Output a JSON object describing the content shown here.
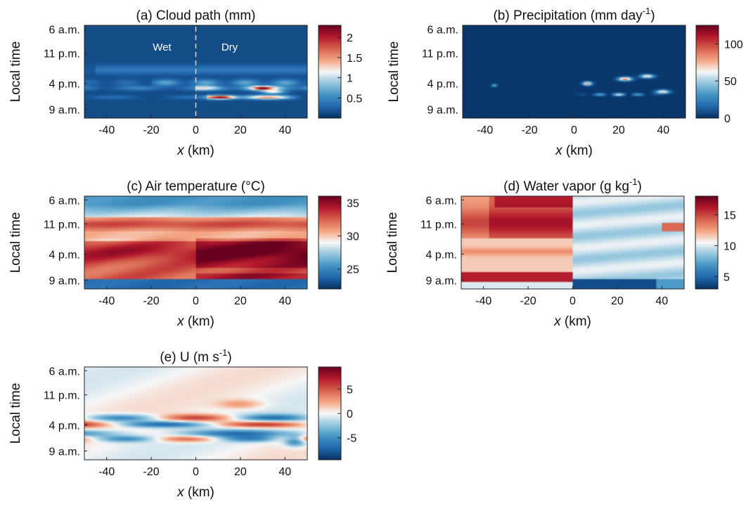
{
  "colors": {
    "colormap": [
      "#053061",
      "#2166ac",
      "#4393c3",
      "#92c5de",
      "#f7f7f7",
      "#f4a582",
      "#d6604d",
      "#b2182b",
      "#67001f"
    ]
  },
  "chart_data": [
    {
      "type": "heatmap",
      "id": "a",
      "title": "(a) Cloud path (mm)",
      "xlabel": "x (km)",
      "ylabel": "Local time",
      "xlim": [
        -50,
        50
      ],
      "x_ticks": [
        -40,
        -20,
        0,
        20,
        40
      ],
      "y_ticks": [
        "6 a.m.",
        "11 p.m.",
        "4 p.m.",
        "9 a.m."
      ],
      "clim": [
        0,
        2.3
      ],
      "colorbar_ticks": [
        0.5,
        1,
        1.5,
        2
      ],
      "colorbar_tick_labels": [
        "0.5",
        "1",
        "1.5",
        "2"
      ],
      "annotations": [
        "Wet",
        "Dry"
      ],
      "divider_x": 0
    },
    {
      "type": "heatmap",
      "id": "b",
      "title": "(b) Precipitation (mm day",
      "title_sup": "-1",
      "title_end": ")",
      "xlabel": "x (km)",
      "ylabel": "Local time",
      "xlim": [
        -50,
        50
      ],
      "x_ticks": [
        -40,
        -20,
        0,
        20,
        40
      ],
      "y_ticks": [
        "6 a.m.",
        "11 p.m.",
        "4 p.m.",
        "9 a.m."
      ],
      "clim": [
        0,
        125
      ],
      "colorbar_ticks": [
        0,
        50,
        100
      ],
      "colorbar_tick_labels": [
        "0",
        "50",
        "100"
      ]
    },
    {
      "type": "heatmap",
      "id": "c",
      "title": "(c) Air temperature (°C)",
      "xlabel": "x (km)",
      "ylabel": "Local time",
      "xlim": [
        -50,
        50
      ],
      "x_ticks": [
        -40,
        -20,
        0,
        20,
        40
      ],
      "y_ticks": [
        "6 a.m.",
        "11 p.m.",
        "4 p.m.",
        "9 a.m."
      ],
      "clim": [
        22,
        36
      ],
      "colorbar_ticks": [
        25,
        30,
        35
      ],
      "colorbar_tick_labels": [
        "25",
        "30",
        "35"
      ]
    },
    {
      "type": "heatmap",
      "id": "d",
      "title": "(d) Water vapor (g kg",
      "title_sup": "-1",
      "title_end": ")",
      "xlabel": "x (km)",
      "ylabel": "Local time",
      "xlim": [
        -50,
        50
      ],
      "x_ticks": [
        -40,
        -20,
        0,
        20,
        40
      ],
      "y_ticks": [
        "6 a.m.",
        "11 p.m.",
        "4 p.m.",
        "9 a.m."
      ],
      "clim": [
        3,
        18
      ],
      "colorbar_ticks": [
        5,
        10,
        15
      ],
      "colorbar_tick_labels": [
        "5",
        "10",
        "15"
      ]
    },
    {
      "type": "heatmap",
      "id": "e",
      "title": "(e) U (m s",
      "title_sup": "-1",
      "title_end": ")",
      "xlabel": "x (km)",
      "ylabel": "Local time",
      "xlim": [
        -50,
        50
      ],
      "x_ticks": [
        -40,
        -20,
        0,
        20,
        40
      ],
      "y_ticks": [
        "6 a.m.",
        "11 p.m.",
        "4 p.m.",
        "9 a.m."
      ],
      "clim": [
        -9.5,
        9.5
      ],
      "colorbar_ticks": [
        -5,
        0,
        5
      ],
      "colorbar_tick_labels": [
        "-5",
        "0",
        "5"
      ]
    }
  ]
}
